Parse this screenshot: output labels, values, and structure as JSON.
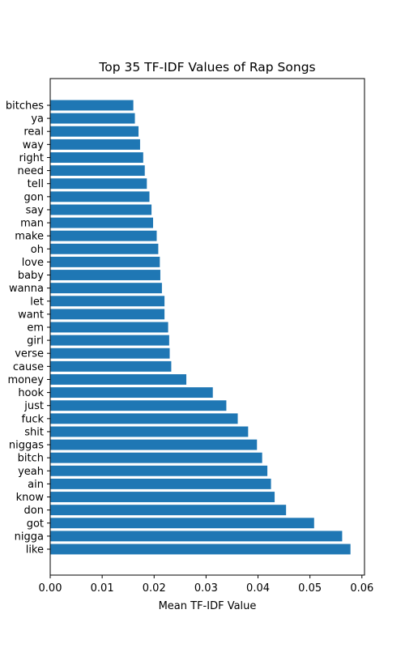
{
  "chart_data": {
    "type": "bar",
    "orientation": "horizontal",
    "title": "Top 35 TF-IDF Values of Rap Songs",
    "xlabel": "Mean TF-IDF Value",
    "ylabel": "",
    "xlim": [
      0.0,
      0.0605
    ],
    "xticks": [
      "0.00",
      "0.01",
      "0.02",
      "0.03",
      "0.04",
      "0.05",
      "0.06"
    ],
    "bar_color": "#1f77b4",
    "grid": false,
    "categories": [
      "like",
      "nigga",
      "got",
      "don",
      "know",
      "ain",
      "yeah",
      "bitch",
      "niggas",
      "shit",
      "fuck",
      "just",
      "hook",
      "money",
      "cause",
      "verse",
      "girl",
      "em",
      "want",
      "let",
      "wanna",
      "baby",
      "love",
      "oh",
      "make",
      "man",
      "say",
      "gon",
      "tell",
      "need",
      "right",
      "way",
      "real",
      "ya",
      "bitches"
    ],
    "values": [
      0.0578,
      0.0562,
      0.0508,
      0.0454,
      0.0432,
      0.0425,
      0.0418,
      0.0408,
      0.0398,
      0.0381,
      0.0361,
      0.0339,
      0.0313,
      0.0262,
      0.0233,
      0.023,
      0.0229,
      0.0227,
      0.022,
      0.022,
      0.0215,
      0.0212,
      0.0211,
      0.0208,
      0.0205,
      0.0198,
      0.0195,
      0.0191,
      0.0186,
      0.0182,
      0.0179,
      0.0173,
      0.017,
      0.0163,
      0.016
    ]
  }
}
